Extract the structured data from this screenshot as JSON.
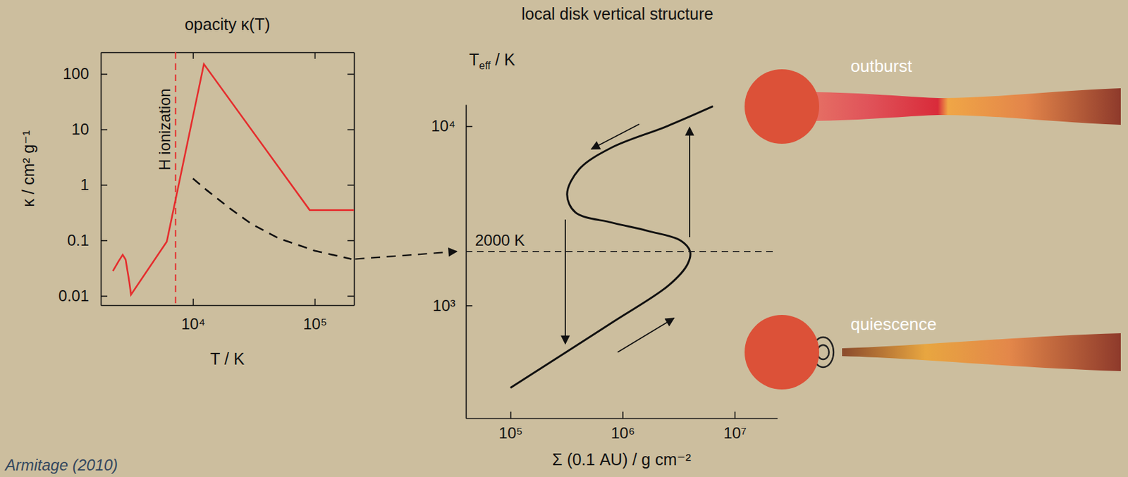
{
  "chart_data": [
    {
      "type": "line",
      "title": "opacity κ(T)",
      "x_label": "T / K",
      "y_label": "κ / cm² g⁻¹",
      "log": true,
      "xlim": [
        1750,
        210000
      ],
      "ylim": [
        0.0068,
        245
      ],
      "xticks": [
        {
          "value": 10000,
          "label": "10⁴"
        },
        {
          "value": 100000,
          "label": "10⁵"
        }
      ],
      "yticks": [
        0.01,
        0.1,
        1,
        10,
        100
      ],
      "series": [
        {
          "color": "#e52d2d",
          "line_style": "solid",
          "x": [
            2200,
            2450,
            2650,
            2800,
            3000,
            3100,
            6100,
            12300,
            91000,
            210000
          ],
          "values": [
            0.028,
            0.042,
            0.055,
            0.045,
            0.018,
            0.0105,
            0.095,
            150,
            0.35,
            0.35
          ]
        },
        {
          "color": "#111111",
          "line_style": "dashed",
          "x": [
            10000,
            13000,
            20000,
            30000,
            50000,
            100000,
            200000
          ],
          "values": [
            1.3,
            0.8,
            0.38,
            0.2,
            0.11,
            0.065,
            0.046
          ]
        }
      ],
      "annotations": [
        {
          "text": "H ionization",
          "x": 7200,
          "color": "#e52d2d",
          "line_style": "dashed"
        }
      ]
    },
    {
      "type": "line",
      "title": "local disk vertical structure",
      "x_label": "Σ (0.1 AU) / g cm⁻²",
      "y_label": "Teff / K",
      "log": true,
      "xlim": [
        40000,
        24000000
      ],
      "ylim": [
        235,
        13200
      ],
      "xticks": [
        {
          "value": 100000,
          "label": "10⁵"
        },
        {
          "value": 1000000,
          "label": "10⁶"
        },
        {
          "value": 10000000,
          "label": "10⁷"
        }
      ],
      "yticks": [
        {
          "value": 1000,
          "label": "10³"
        },
        {
          "value": 10000,
          "label": "10⁴"
        }
      ],
      "series": [
        {
          "color": "#111111",
          "line_style": "solid",
          "x": [
            100000,
            800000,
            2600000,
            3800000,
            4000000,
            3300000,
            1700000,
            800000,
            380000,
            320000,
            410000,
            800000,
            2500000,
            6400000
          ],
          "values": [
            347,
            800,
            1300,
            1700,
            2000,
            2300,
            2600,
            2900,
            3300,
            4170,
            5750,
            7600,
            10000,
            12900
          ]
        }
      ],
      "annotations": [
        {
          "text": "2000 K",
          "y": 2000,
          "color": "#222222",
          "line_style": "dashed"
        }
      ]
    }
  ],
  "panels": [
    {
      "label": "outburst"
    },
    {
      "label": "quiescence"
    }
  ],
  "citation": "Armitage (2010)"
}
